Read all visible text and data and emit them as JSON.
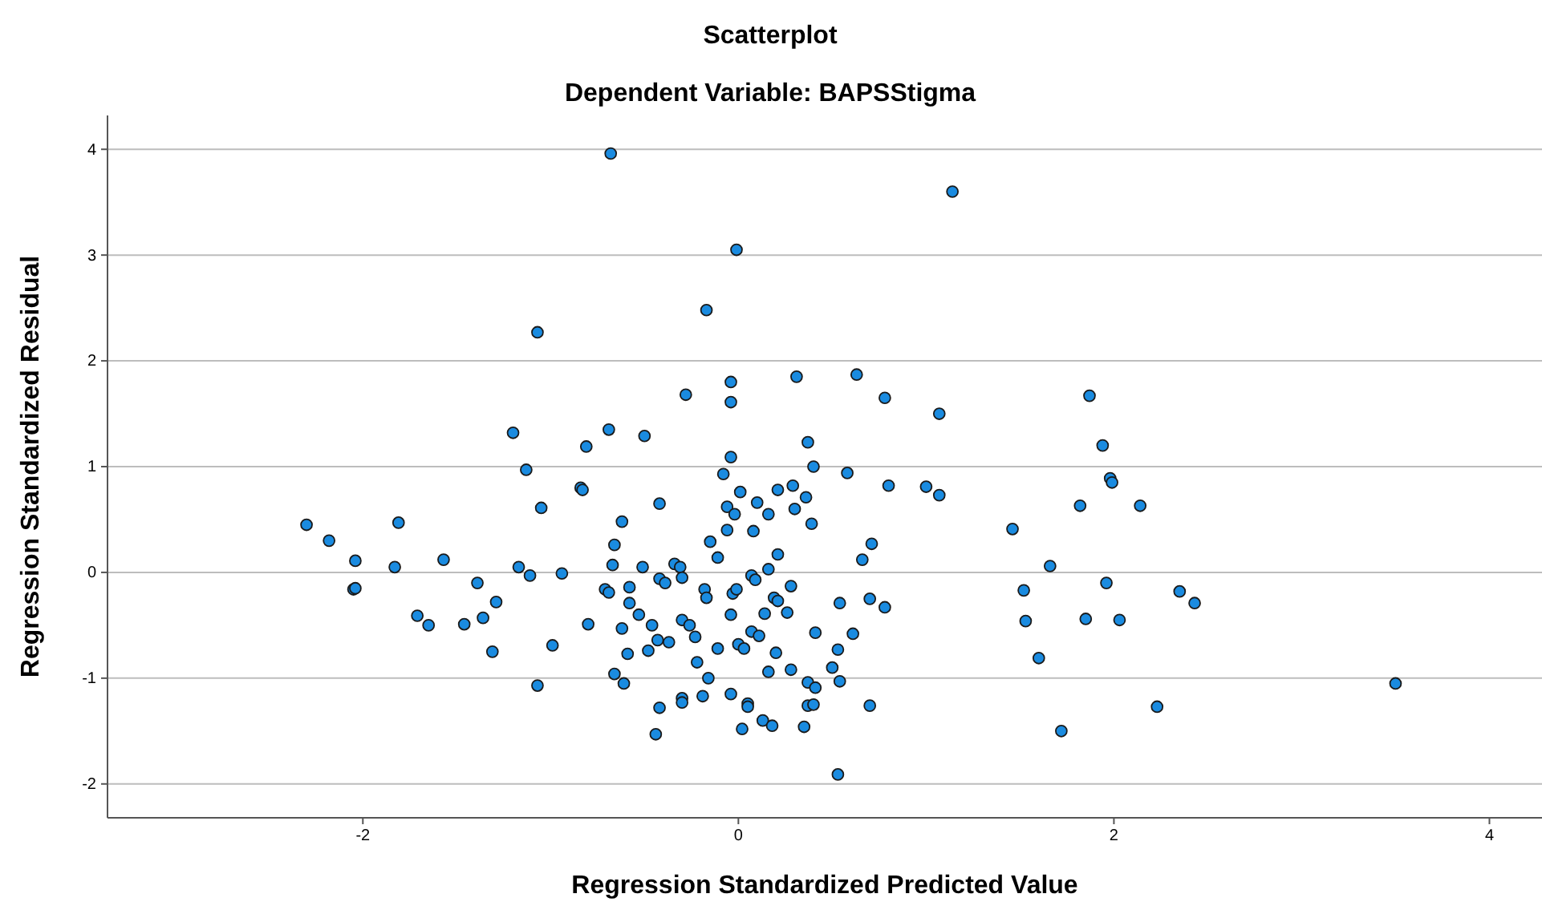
{
  "chart_data": {
    "type": "scatter",
    "title": "Scatterplot",
    "subtitle": "Dependent Variable: BAPSStigma",
    "xlabel": "Regression Standardized Predicted Value",
    "ylabel": "Regression Standardized Residual",
    "xlim": [
      -3.36,
      4.28
    ],
    "ylim": [
      -2.32,
      4.32
    ],
    "xticks": [
      -2,
      0,
      2,
      4
    ],
    "yticks": [
      -2,
      -1,
      0,
      1,
      2,
      3,
      4
    ],
    "grid": "y",
    "marker": "circle",
    "series": [
      {
        "color": "#1a8be0",
        "x": [
          -2.3,
          -2.18,
          -2.04,
          -2.05,
          -2.04,
          -1.81,
          -1.83,
          -1.57,
          -1.71,
          -1.65,
          -1.46,
          -1.39,
          -1.36,
          -1.29,
          -1.31,
          -1.2,
          -1.13,
          -1.05,
          -1.07,
          -1.17,
          -1.11,
          -0.94,
          -0.99,
          -1.07,
          -0.84,
          -0.83,
          -0.68,
          -0.01,
          -0.17,
          -0.28,
          -0.04,
          -0.04,
          0.31,
          0.63,
          0.78,
          -0.81,
          -0.69,
          -0.5,
          0.37,
          -0.04,
          0.4,
          0.58,
          -0.08,
          0.8,
          1.0,
          -0.42,
          0.01,
          -0.06,
          -0.02,
          0.1,
          0.16,
          0.21,
          0.29,
          0.36,
          0.3,
          0.39,
          -0.06,
          0.08,
          -0.62,
          -0.66,
          -0.15,
          -0.11,
          0.21,
          0.71,
          0.66,
          -0.67,
          -0.51,
          -0.34,
          -0.31,
          -0.42,
          -0.39,
          -0.3,
          -0.71,
          -0.69,
          -0.58,
          -0.58,
          -0.53,
          -0.8,
          -0.62,
          -0.46,
          -0.3,
          -0.26,
          -0.23,
          -0.43,
          -0.37,
          -0.48,
          -0.59,
          -0.18,
          -0.17,
          -0.04,
          -0.03,
          -0.01,
          0.07,
          0.09,
          0.16,
          0.28,
          0.19,
          0.21,
          0.14,
          0.26,
          0.54,
          0.7,
          0.78,
          0.41,
          0.61,
          0.07,
          0.11,
          0.0,
          0.03,
          0.2,
          -0.11,
          0.53,
          0.5,
          -0.22,
          -0.16,
          0.16,
          0.28,
          0.37,
          0.41,
          0.54,
          -0.66,
          -0.61,
          -0.3,
          -0.3,
          -0.19,
          -0.04,
          0.05,
          0.05,
          -0.42,
          -0.44,
          0.02,
          0.13,
          0.18,
          0.35,
          0.37,
          0.4,
          0.7,
          0.53,
          1.14,
          1.07,
          1.87,
          1.94,
          1.98,
          1.99,
          1.07,
          1.82,
          2.14,
          1.46,
          1.66,
          1.52,
          1.96,
          2.35,
          2.43,
          1.53,
          1.85,
          2.03,
          1.6,
          3.5,
          2.23,
          1.72
        ],
        "values": [
          0.45,
          0.3,
          0.11,
          -0.16,
          -0.15,
          0.47,
          0.05,
          0.12,
          -0.41,
          -0.5,
          -0.49,
          -0.1,
          -0.43,
          -0.28,
          -0.75,
          1.32,
          0.97,
          0.61,
          2.27,
          0.05,
          -0.03,
          -0.01,
          -0.69,
          -1.07,
          0.8,
          0.78,
          3.96,
          3.05,
          2.48,
          1.68,
          1.8,
          1.61,
          1.85,
          1.87,
          1.65,
          1.19,
          1.35,
          1.29,
          1.23,
          1.09,
          1.0,
          0.94,
          0.93,
          0.82,
          0.81,
          0.65,
          0.76,
          0.62,
          0.55,
          0.66,
          0.55,
          0.78,
          0.82,
          0.71,
          0.6,
          0.46,
          0.4,
          0.39,
          0.48,
          0.26,
          0.29,
          0.14,
          0.17,
          0.27,
          0.12,
          0.07,
          0.05,
          0.08,
          0.05,
          -0.06,
          -0.1,
          -0.05,
          -0.16,
          -0.19,
          -0.14,
          -0.29,
          -0.4,
          -0.49,
          -0.53,
          -0.5,
          -0.45,
          -0.5,
          -0.61,
          -0.64,
          -0.66,
          -0.74,
          -0.77,
          -0.16,
          -0.24,
          -0.4,
          -0.2,
          -0.16,
          -0.03,
          -0.07,
          0.03,
          -0.13,
          -0.24,
          -0.27,
          -0.39,
          -0.38,
          -0.29,
          -0.25,
          -0.33,
          -0.57,
          -0.58,
          -0.56,
          -0.6,
          -0.68,
          -0.72,
          -0.76,
          -0.72,
          -0.73,
          -0.9,
          -0.85,
          -1.0,
          -0.94,
          -0.92,
          -1.04,
          -1.09,
          -1.03,
          -0.96,
          -1.05,
          -1.19,
          -1.23,
          -1.17,
          -1.15,
          -1.24,
          -1.27,
          -1.28,
          -1.53,
          -1.48,
          -1.4,
          -1.45,
          -1.46,
          -1.26,
          -1.25,
          -1.26,
          -1.91,
          3.6,
          1.5,
          1.67,
          1.2,
          0.89,
          0.85,
          0.73,
          0.63,
          0.63,
          0.41,
          0.06,
          -0.17,
          -0.1,
          -0.18,
          -0.29,
          -0.46,
          -0.44,
          -0.45,
          -0.81,
          -1.05,
          -1.27,
          -1.5
        ]
      }
    ]
  }
}
